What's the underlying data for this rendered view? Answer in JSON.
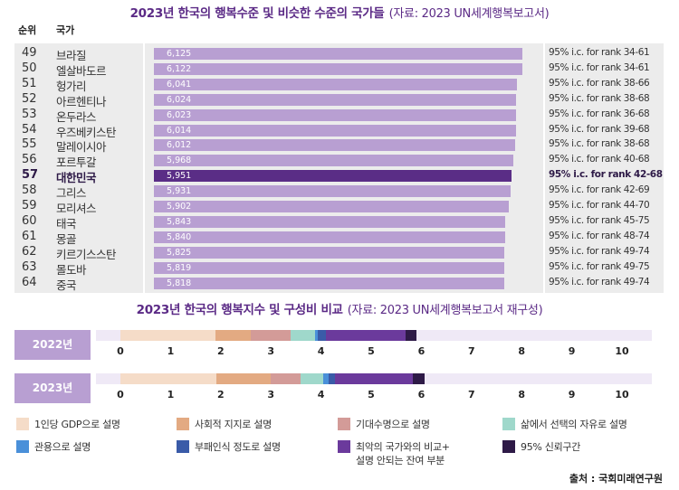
{
  "title1": {
    "main": "2023년 한국의 행복수준 및 비슷한 수준의 국가들",
    "sub": "(자료: 2023 UN세계행복보고서)"
  },
  "title2": {
    "main": "2023년 한국의 행복지수 및 구성비 비교",
    "sub": "(자료: 2023 UN세계행복보고서 재구성)"
  },
  "headers": {
    "rank": "순위",
    "country": "국가"
  },
  "colors": {
    "bar": "#b89fd2",
    "highlight": "#5a2d86",
    "panel": "#ececec"
  },
  "chart_data": [
    {
      "type": "bar",
      "orientation": "horizontal",
      "title": "2023년 한국의 행복수준 및 비슷한 수준의 국가들",
      "highlight": "대한민국",
      "rows": [
        {
          "rank": "49",
          "country": "브라질",
          "value": 6.125,
          "label": "6,125",
          "ci": "95% i.c. for rank 34-61"
        },
        {
          "rank": "50",
          "country": "엘살바도르",
          "value": 6.122,
          "label": "6,122",
          "ci": "95% i.c. for rank 34-61"
        },
        {
          "rank": "51",
          "country": "헝가리",
          "value": 6.041,
          "label": "6,041",
          "ci": "95% i.c. for rank 38-66"
        },
        {
          "rank": "52",
          "country": "아르헨티나",
          "value": 6.024,
          "label": "6,024",
          "ci": "95% i.c. for rank 38-68"
        },
        {
          "rank": "53",
          "country": "온두라스",
          "value": 6.023,
          "label": "6,023",
          "ci": "95% i.c. for rank 36-68"
        },
        {
          "rank": "54",
          "country": "우즈베키스탄",
          "value": 6.014,
          "label": "6,014",
          "ci": "95% i.c. for rank 39-68"
        },
        {
          "rank": "55",
          "country": "말레이시아",
          "value": 6.012,
          "label": "6,012",
          "ci": "95% i.c. for rank 38-68"
        },
        {
          "rank": "56",
          "country": "포르투갈",
          "value": 5.968,
          "label": "5,968",
          "ci": "95% i.c. for rank 40-68"
        },
        {
          "rank": "57",
          "country": "대한민국",
          "value": 5.951,
          "label": "5,951",
          "ci": "95% i.c. for rank 42-68"
        },
        {
          "rank": "58",
          "country": "그리스",
          "value": 5.931,
          "label": "5,931",
          "ci": "95% i.c. for rank 42-69"
        },
        {
          "rank": "59",
          "country": "모리셔스",
          "value": 5.902,
          "label": "5,902",
          "ci": "95% i.c. for rank 44-70"
        },
        {
          "rank": "60",
          "country": "태국",
          "value": 5.843,
          "label": "5,843",
          "ci": "95% i.c. for rank 45-75"
        },
        {
          "rank": "61",
          "country": "몽골",
          "value": 5.84,
          "label": "5,840",
          "ci": "95% i.c. for rank 48-74"
        },
        {
          "rank": "62",
          "country": "키르기스스탄",
          "value": 5.825,
          "label": "5,825",
          "ci": "95% i.c. for rank 49-74"
        },
        {
          "rank": "63",
          "country": "몰도바",
          "value": 5.819,
          "label": "5,819",
          "ci": "95% i.c. for rank 49-75"
        },
        {
          "rank": "64",
          "country": "중국",
          "value": 5.818,
          "label": "5,818",
          "ci": "95% i.c. for rank 49-74"
        }
      ]
    },
    {
      "type": "bar",
      "orientation": "horizontal",
      "stacked": true,
      "title": "2023년 한국의 행복지수 및 구성비 비교",
      "xlim": [
        0,
        11
      ],
      "ticks": [
        "0",
        "1",
        "2",
        "3",
        "4",
        "5",
        "6",
        "7",
        "8",
        "9",
        "10"
      ],
      "categories": [
        "2022년",
        "2023년"
      ],
      "series": [
        {
          "name": "1인당 GDP으로 설명",
          "color": "#f5dcc8",
          "values": [
            1.9,
            1.91
          ]
        },
        {
          "name": "사회적 지지로 설명",
          "color": "#e3aa82",
          "values": [
            0.7,
            1.09
          ]
        },
        {
          "name": "기대수명으로 설명",
          "color": "#d39b98",
          "values": [
            0.8,
            0.6
          ]
        },
        {
          "name": "삶에서 선택의 자유로 설명",
          "color": "#9fd8cb",
          "values": [
            0.48,
            0.45
          ]
        },
        {
          "name": "관용으로 설명",
          "color": "#4a90d9",
          "values": [
            0.05,
            0.1
          ]
        },
        {
          "name": "부패인식 정도로 설명",
          "color": "#3a5ba8",
          "values": [
            0.16,
            0.13
          ]
        },
        {
          "name": "최악의 국가와의 비교+ 설명 안되는 잔여 부분",
          "color": "#6b3a9c",
          "values": [
            1.6,
            1.55
          ]
        },
        {
          "name": "95% 신뢰구간",
          "color": "#2e1a47",
          "values": [
            0.22,
            0.23
          ]
        }
      ]
    }
  ],
  "source": "출처 : 국회미래연구원"
}
